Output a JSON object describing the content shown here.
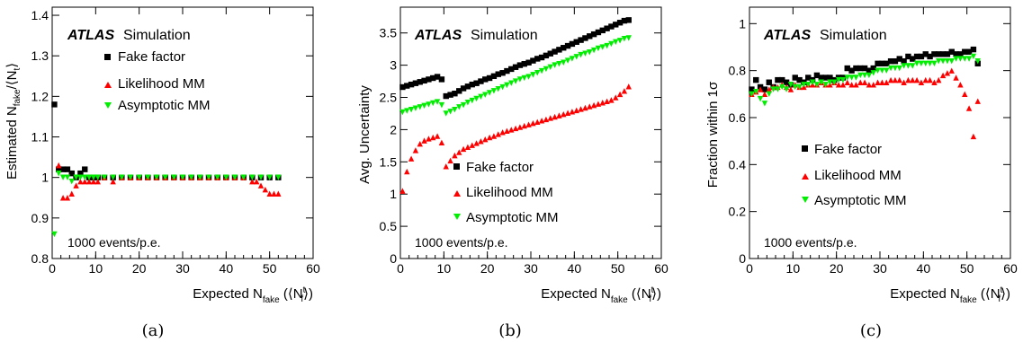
{
  "colors": {
    "fake_factor": "#000000",
    "likelihood": "#ff0000",
    "asymptotic": "#00ee00"
  },
  "chart_data": [
    {
      "type": "scatter",
      "panel_label": "(a)",
      "ylabel": "Estimated N_fake/⟨N_f^t⟩",
      "ylabel_main": "Estimated N",
      "ylabel_sub": "fake",
      "ylabel_rest": "/⟨N",
      "ylabel_sub2": "t",
      "ylabel_end": "⟩",
      "xlabel_main": "Expected N",
      "xlabel_sub": "fake",
      "xlabel_rest": " (⟨N",
      "xlabel_sup": "t",
      "xlabel_sub2": "f",
      "xlabel_end": "⟩)",
      "xlim": [
        0,
        60
      ],
      "ylim": [
        0.8,
        1.42
      ],
      "xticks": [
        "0",
        "10",
        "20",
        "30",
        "40",
        "50",
        "60"
      ],
      "yticks": [
        "0.8",
        "0.9",
        "1",
        "1.1",
        "1.2",
        "1.3",
        "1.4"
      ],
      "atlas": "ATLAS",
      "atlas_suffix": "Simulation",
      "note": "1000 events/p.e.",
      "legend": [
        "Fake factor",
        "Likelihood MM",
        "Asymptotic MM"
      ],
      "series": [
        {
          "name": "Fake factor",
          "marker": "square",
          "x": [
            0.5,
            1.5,
            2.5,
            3.5,
            4.5,
            5.5,
            6.5,
            7.5,
            8.5,
            9.5,
            10.5,
            12,
            14,
            16,
            18,
            20,
            22,
            24,
            26,
            28,
            30,
            32,
            34,
            36,
            38,
            40,
            42,
            44,
            46,
            48,
            50,
            52
          ],
          "y": [
            1.18,
            1.02,
            1.02,
            1.02,
            1.01,
            1.0,
            1.01,
            1.02,
            1.0,
            1.0,
            1.0,
            1.0,
            1.0,
            1.0,
            1.0,
            1.0,
            1.0,
            1.0,
            1.0,
            1.0,
            1.0,
            1.0,
            1.0,
            1.0,
            1.0,
            1.0,
            1.0,
            1.0,
            1.0,
            1.0,
            1.0,
            1.0
          ]
        },
        {
          "name": "Likelihood MM",
          "marker": "triangle-up",
          "x": [
            1.5,
            2.5,
            3.5,
            4.5,
            5.5,
            6.5,
            7.5,
            8.5,
            9.5,
            10.5,
            12,
            14,
            16,
            18,
            20,
            22,
            24,
            26,
            28,
            30,
            32,
            34,
            36,
            38,
            40,
            42,
            44,
            46,
            47,
            48,
            49,
            50,
            51,
            52
          ],
          "y": [
            1.03,
            0.95,
            0.95,
            0.96,
            0.98,
            0.99,
            0.99,
            0.99,
            0.99,
            0.99,
            1.0,
            0.99,
            1.0,
            1.0,
            1.0,
            1.0,
            1.0,
            1.0,
            1.0,
            1.0,
            1.0,
            1.0,
            1.0,
            1.0,
            1.0,
            1.0,
            1.0,
            0.99,
            0.99,
            0.98,
            0.97,
            0.96,
            0.96,
            0.96
          ]
        },
        {
          "name": "Asymptotic MM",
          "marker": "triangle-down",
          "x": [
            0.5,
            1.5,
            2.5,
            3.5,
            4.5,
            5.5,
            6.5,
            7.5,
            8.5,
            9.5,
            10.5,
            12,
            14,
            16,
            18,
            20,
            22,
            24,
            26,
            28,
            30,
            32,
            34,
            36,
            38,
            40,
            42,
            44,
            46,
            48,
            50,
            52
          ],
          "y": [
            0.86,
            1.01,
            1.0,
            1.0,
            0.99,
            1.0,
            1.0,
            1.0,
            1.0,
            1.0,
            1.0,
            1.0,
            1.0,
            1.0,
            1.0,
            1.0,
            1.0,
            1.0,
            1.0,
            1.0,
            1.0,
            1.0,
            1.0,
            1.0,
            1.0,
            1.0,
            1.0,
            1.0,
            1.0,
            1.0,
            1.0,
            1.0
          ]
        }
      ]
    },
    {
      "type": "scatter",
      "panel_label": "(b)",
      "ylabel": "Avg. Uncertainty",
      "xlabel_main": "Expected N",
      "xlabel_sub": "fake",
      "xlabel_rest": " (⟨N",
      "xlabel_sup": "t",
      "xlabel_sub2": "f",
      "xlabel_end": "⟩)",
      "xlim": [
        0,
        60
      ],
      "ylim": [
        0,
        3.9
      ],
      "xticks": [
        "0",
        "10",
        "20",
        "30",
        "40",
        "50",
        "60"
      ],
      "yticks": [
        "0",
        "0.5",
        "1",
        "1.5",
        "2",
        "2.5",
        "3",
        "3.5"
      ],
      "atlas": "ATLAS",
      "atlas_suffix": "Simulation",
      "note": "1000 events/p.e.",
      "legend": [
        "Fake factor",
        "Likelihood MM",
        "Asymptotic MM"
      ],
      "series": [
        {
          "name": "Fake factor",
          "marker": "square",
          "x": [
            0.5,
            1.5,
            2.5,
            3.5,
            4.5,
            5.5,
            6.5,
            7.5,
            8.5,
            9.5,
            10.5,
            11.5,
            12.5,
            13.5,
            14.5,
            15.5,
            16.5,
            17.5,
            18.5,
            19.5,
            20.5,
            21.5,
            22.5,
            23.5,
            24.5,
            25.5,
            26.5,
            27.5,
            28.5,
            29.5,
            30.5,
            31.5,
            32.5,
            33.5,
            34.5,
            35.5,
            36.5,
            37.5,
            38.5,
            39.5,
            40.5,
            41.5,
            42.5,
            43.5,
            44.5,
            45.5,
            46.5,
            47.5,
            48.5,
            49.5,
            50.5,
            51.5,
            52.5
          ],
          "y": [
            2.66,
            2.68,
            2.7,
            2.72,
            2.74,
            2.76,
            2.78,
            2.8,
            2.82,
            2.78,
            2.52,
            2.54,
            2.56,
            2.6,
            2.64,
            2.67,
            2.7,
            2.72,
            2.75,
            2.78,
            2.8,
            2.83,
            2.86,
            2.88,
            2.91,
            2.94,
            2.97,
            3.0,
            3.02,
            3.04,
            3.07,
            3.1,
            3.12,
            3.15,
            3.18,
            3.21,
            3.24,
            3.27,
            3.3,
            3.33,
            3.36,
            3.39,
            3.42,
            3.45,
            3.48,
            3.51,
            3.54,
            3.57,
            3.6,
            3.63,
            3.66,
            3.69,
            3.7
          ]
        },
        {
          "name": "Likelihood MM",
          "marker": "triangle-up",
          "x": [
            0.5,
            1.5,
            2.5,
            3.5,
            4.5,
            5.5,
            6.5,
            7.5,
            8.5,
            9.5,
            10.5,
            11.5,
            12.5,
            13.5,
            14.5,
            15.5,
            16.5,
            17.5,
            18.5,
            19.5,
            20.5,
            21.5,
            22.5,
            23.5,
            24.5,
            25.5,
            26.5,
            27.5,
            28.5,
            29.5,
            30.5,
            31.5,
            32.5,
            33.5,
            34.5,
            35.5,
            36.5,
            37.5,
            38.5,
            39.5,
            40.5,
            41.5,
            42.5,
            43.5,
            44.5,
            45.5,
            46.5,
            47.5,
            48.5,
            49.5,
            50.5,
            51.5,
            52.5
          ],
          "y": [
            1.05,
            1.35,
            1.55,
            1.68,
            1.78,
            1.83,
            1.86,
            1.88,
            1.9,
            1.8,
            1.43,
            1.52,
            1.6,
            1.65,
            1.7,
            1.73,
            1.76,
            1.79,
            1.82,
            1.85,
            1.88,
            1.9,
            1.93,
            1.96,
            1.98,
            2.0,
            2.02,
            2.04,
            2.06,
            2.08,
            2.1,
            2.12,
            2.14,
            2.16,
            2.18,
            2.2,
            2.22,
            2.24,
            2.26,
            2.28,
            2.3,
            2.32,
            2.34,
            2.36,
            2.38,
            2.4,
            2.42,
            2.44,
            2.46,
            2.5,
            2.55,
            2.6,
            2.67
          ]
        },
        {
          "name": "Asymptotic MM",
          "marker": "triangle-down",
          "x": [
            0.5,
            1.5,
            2.5,
            3.5,
            4.5,
            5.5,
            6.5,
            7.5,
            8.5,
            9.5,
            10.5,
            11.5,
            12.5,
            13.5,
            14.5,
            15.5,
            16.5,
            17.5,
            18.5,
            19.5,
            20.5,
            21.5,
            22.5,
            23.5,
            24.5,
            25.5,
            26.5,
            27.5,
            28.5,
            29.5,
            30.5,
            31.5,
            32.5,
            33.5,
            34.5,
            35.5,
            36.5,
            37.5,
            38.5,
            39.5,
            40.5,
            41.5,
            42.5,
            43.5,
            44.5,
            45.5,
            46.5,
            47.5,
            48.5,
            49.5,
            50.5,
            51.5,
            52.5
          ],
          "y": [
            2.27,
            2.29,
            2.31,
            2.33,
            2.35,
            2.37,
            2.39,
            2.41,
            2.43,
            2.38,
            2.25,
            2.28,
            2.31,
            2.35,
            2.38,
            2.42,
            2.45,
            2.48,
            2.51,
            2.54,
            2.57,
            2.6,
            2.63,
            2.66,
            2.69,
            2.72,
            2.75,
            2.78,
            2.8,
            2.82,
            2.85,
            2.88,
            2.91,
            2.94,
            2.97,
            3.0,
            3.02,
            3.04,
            3.07,
            3.1,
            3.13,
            3.16,
            3.18,
            3.2,
            3.23,
            3.26,
            3.28,
            3.3,
            3.33,
            3.36,
            3.38,
            3.41,
            3.42
          ]
        }
      ]
    },
    {
      "type": "scatter",
      "panel_label": "(c)",
      "ylabel": "Fraction within 1σ",
      "xlabel_main": "Expected N",
      "xlabel_sub": "fake",
      "xlabel_rest": " (⟨N",
      "xlabel_sup": "t",
      "xlabel_sub2": "f",
      "xlabel_end": "⟩)",
      "xlim": [
        0,
        60
      ],
      "ylim": [
        0,
        1.07
      ],
      "xticks": [
        "0",
        "10",
        "20",
        "30",
        "40",
        "50",
        "60"
      ],
      "yticks": [
        "0",
        "0.2",
        "0.4",
        "0.6",
        "0.8",
        "1"
      ],
      "atlas": "ATLAS",
      "atlas_suffix": "Simulation",
      "note": "1000 events/p.e.",
      "legend": [
        "Fake factor",
        "Likelihood MM",
        "Asymptotic MM"
      ],
      "series": [
        {
          "name": "Fake factor",
          "marker": "square",
          "x": [
            0.5,
            1.5,
            2.5,
            3.5,
            4.5,
            5.5,
            6.5,
            7.5,
            8.5,
            9.5,
            10.5,
            11.5,
            12.5,
            13.5,
            14.5,
            15.5,
            16.5,
            17.5,
            18.5,
            19.5,
            20.5,
            21.5,
            22.5,
            23.5,
            24.5,
            25.5,
            26.5,
            27.5,
            28.5,
            29.5,
            30.5,
            31.5,
            32.5,
            33.5,
            34.5,
            35.5,
            36.5,
            37.5,
            38.5,
            39.5,
            40.5,
            41.5,
            42.5,
            43.5,
            44.5,
            45.5,
            46.5,
            47.5,
            48.5,
            49.5,
            50.5,
            51.5,
            52.5
          ],
          "y": [
            0.72,
            0.76,
            0.73,
            0.72,
            0.75,
            0.73,
            0.76,
            0.76,
            0.75,
            0.74,
            0.77,
            0.76,
            0.75,
            0.77,
            0.76,
            0.78,
            0.77,
            0.77,
            0.77,
            0.76,
            0.77,
            0.77,
            0.81,
            0.8,
            0.81,
            0.81,
            0.81,
            0.8,
            0.81,
            0.83,
            0.83,
            0.83,
            0.84,
            0.84,
            0.85,
            0.84,
            0.86,
            0.85,
            0.86,
            0.86,
            0.87,
            0.86,
            0.87,
            0.87,
            0.87,
            0.87,
            0.88,
            0.87,
            0.87,
            0.88,
            0.88,
            0.89,
            0.83
          ]
        },
        {
          "name": "Likelihood MM",
          "marker": "triangle-up",
          "x": [
            0.5,
            1.5,
            2.5,
            3.5,
            4.5,
            5.5,
            6.5,
            7.5,
            8.5,
            9.5,
            10.5,
            11.5,
            12.5,
            13.5,
            14.5,
            15.5,
            16.5,
            17.5,
            18.5,
            19.5,
            20.5,
            21.5,
            22.5,
            23.5,
            24.5,
            25.5,
            26.5,
            27.5,
            28.5,
            29.5,
            30.5,
            31.5,
            32.5,
            33.5,
            34.5,
            35.5,
            36.5,
            37.5,
            38.5,
            39.5,
            40.5,
            41.5,
            42.5,
            43.5,
            44.5,
            45.5,
            46.5,
            47.5,
            48.5,
            49.5,
            50.5,
            51.5,
            52.5
          ],
          "y": [
            0.7,
            0.71,
            0.72,
            0.7,
            0.72,
            0.73,
            0.73,
            0.74,
            0.73,
            0.72,
            0.74,
            0.73,
            0.73,
            0.74,
            0.74,
            0.74,
            0.75,
            0.74,
            0.74,
            0.75,
            0.74,
            0.74,
            0.75,
            0.74,
            0.74,
            0.75,
            0.75,
            0.74,
            0.74,
            0.75,
            0.75,
            0.75,
            0.76,
            0.76,
            0.76,
            0.75,
            0.76,
            0.76,
            0.76,
            0.75,
            0.76,
            0.76,
            0.75,
            0.76,
            0.78,
            0.79,
            0.8,
            0.77,
            0.74,
            0.7,
            0.64,
            0.52,
            0.67
          ]
        },
        {
          "name": "Asymptotic MM",
          "marker": "triangle-down",
          "x": [
            0.5,
            1.5,
            2.5,
            3.5,
            4.5,
            5.5,
            6.5,
            7.5,
            8.5,
            9.5,
            10.5,
            11.5,
            12.5,
            13.5,
            14.5,
            15.5,
            16.5,
            17.5,
            18.5,
            19.5,
            20.5,
            21.5,
            22.5,
            23.5,
            24.5,
            25.5,
            26.5,
            27.5,
            28.5,
            29.5,
            30.5,
            31.5,
            32.5,
            33.5,
            34.5,
            35.5,
            36.5,
            37.5,
            38.5,
            39.5,
            40.5,
            41.5,
            42.5,
            43.5,
            44.5,
            45.5,
            46.5,
            47.5,
            48.5,
            49.5,
            50.5,
            51.5,
            52.5
          ],
          "y": [
            0.7,
            0.71,
            0.68,
            0.66,
            0.7,
            0.72,
            0.72,
            0.73,
            0.72,
            0.74,
            0.73,
            0.73,
            0.74,
            0.74,
            0.75,
            0.74,
            0.75,
            0.74,
            0.75,
            0.75,
            0.76,
            0.76,
            0.77,
            0.77,
            0.77,
            0.78,
            0.78,
            0.78,
            0.79,
            0.8,
            0.8,
            0.8,
            0.81,
            0.81,
            0.81,
            0.82,
            0.82,
            0.82,
            0.83,
            0.83,
            0.83,
            0.83,
            0.83,
            0.84,
            0.84,
            0.84,
            0.84,
            0.85,
            0.85,
            0.85,
            0.85,
            0.86,
            0.84
          ]
        }
      ]
    }
  ]
}
